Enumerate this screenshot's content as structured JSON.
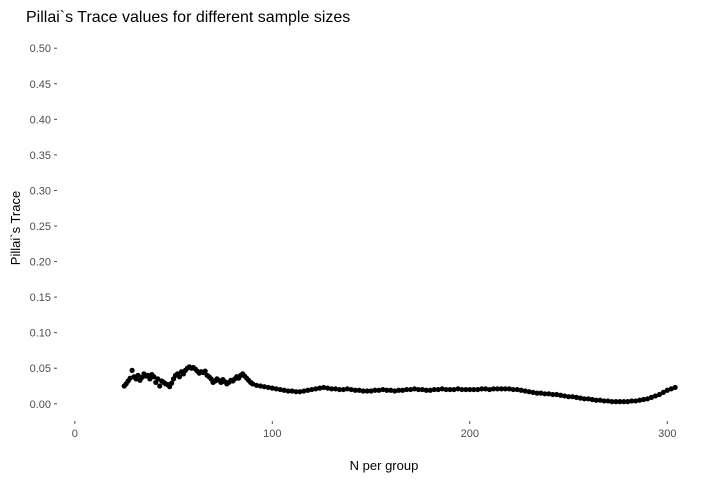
{
  "chart_data": {
    "type": "scatter",
    "title": "Pillai`s Trace values for different sample sizes",
    "xlabel": "N per group",
    "ylabel": "Pillai`s Trace",
    "xlim": [
      -7,
      311
    ],
    "ylim": [
      -0.02,
      0.52
    ],
    "x_ticks": [
      0,
      100,
      200,
      300
    ],
    "x_tick_labels": [
      "0",
      "100",
      "200",
      "300"
    ],
    "y_ticks": [
      0,
      0.05,
      0.1,
      0.15,
      0.2,
      0.25,
      0.3,
      0.35,
      0.4,
      0.45,
      0.5
    ],
    "y_tick_labels": [
      "0.00",
      "0.05",
      "0.10",
      "0.15",
      "0.20",
      "0.25",
      "0.30",
      "0.35",
      "0.40",
      "0.45",
      "0.50"
    ],
    "grid": false,
    "legend": "none",
    "point_color": "#000000",
    "series": [
      {
        "x": [
          25,
          26,
          27,
          28,
          29,
          30,
          31,
          32,
          33,
          34,
          35,
          36,
          37,
          38,
          39,
          40,
          41,
          42,
          43,
          44,
          45,
          46,
          47,
          48,
          49,
          50,
          51,
          52,
          53,
          54,
          55,
          56,
          57,
          58,
          59,
          60,
          61,
          62,
          63,
          64,
          65,
          66,
          67,
          68,
          69,
          70,
          71,
          72,
          73,
          74,
          75,
          76,
          77,
          78,
          79,
          80,
          81,
          82,
          83,
          84,
          85,
          86,
          87,
          88,
          89,
          90,
          92,
          94,
          96,
          98,
          100,
          102,
          104,
          106,
          108,
          110,
          112,
          114,
          116,
          118,
          120,
          122,
          124,
          126,
          128,
          130,
          132,
          134,
          136,
          138,
          140,
          142,
          144,
          146,
          148,
          150,
          152,
          154,
          156,
          158,
          160,
          162,
          164,
          166,
          168,
          170,
          172,
          174,
          176,
          178,
          180,
          182,
          184,
          186,
          188,
          190,
          192,
          194,
          196,
          198,
          200,
          202,
          204,
          206,
          208,
          210,
          212,
          214,
          216,
          218,
          220,
          222,
          224,
          226,
          228,
          230,
          232,
          234,
          236,
          238,
          240,
          242,
          244,
          246,
          248,
          250,
          252,
          254,
          256,
          258,
          260,
          262,
          264,
          266,
          268,
          270,
          272,
          274,
          276,
          278,
          280,
          282,
          284,
          286,
          288,
          290,
          292,
          294,
          296,
          298,
          300,
          302,
          304
        ],
        "y": [
          0.025,
          0.028,
          0.032,
          0.036,
          0.047,
          0.038,
          0.035,
          0.04,
          0.033,
          0.037,
          0.042,
          0.039,
          0.04,
          0.035,
          0.041,
          0.038,
          0.03,
          0.035,
          0.025,
          0.032,
          0.03,
          0.028,
          0.027,
          0.024,
          0.029,
          0.035,
          0.04,
          0.042,
          0.038,
          0.045,
          0.042,
          0.047,
          0.05,
          0.052,
          0.05,
          0.051,
          0.049,
          0.046,
          0.043,
          0.045,
          0.044,
          0.046,
          0.04,
          0.038,
          0.035,
          0.03,
          0.032,
          0.035,
          0.033,
          0.03,
          0.034,
          0.031,
          0.028,
          0.03,
          0.033,
          0.032,
          0.035,
          0.038,
          0.036,
          0.04,
          0.042,
          0.039,
          0.036,
          0.033,
          0.03,
          0.028,
          0.026,
          0.025,
          0.024,
          0.023,
          0.022,
          0.021,
          0.02,
          0.019,
          0.018,
          0.018,
          0.017,
          0.017,
          0.018,
          0.019,
          0.02,
          0.021,
          0.022,
          0.023,
          0.022,
          0.021,
          0.021,
          0.02,
          0.02,
          0.021,
          0.02,
          0.019,
          0.019,
          0.018,
          0.018,
          0.018,
          0.019,
          0.019,
          0.02,
          0.019,
          0.019,
          0.018,
          0.019,
          0.019,
          0.02,
          0.02,
          0.021,
          0.02,
          0.02,
          0.019,
          0.019,
          0.02,
          0.02,
          0.021,
          0.02,
          0.02,
          0.02,
          0.021,
          0.02,
          0.02,
          0.02,
          0.02,
          0.02,
          0.021,
          0.021,
          0.02,
          0.021,
          0.021,
          0.021,
          0.021,
          0.021,
          0.02,
          0.02,
          0.019,
          0.018,
          0.017,
          0.016,
          0.015,
          0.015,
          0.014,
          0.014,
          0.013,
          0.013,
          0.012,
          0.011,
          0.01,
          0.01,
          0.009,
          0.008,
          0.007,
          0.007,
          0.006,
          0.005,
          0.005,
          0.004,
          0.004,
          0.003,
          0.003,
          0.003,
          0.003,
          0.003,
          0.004,
          0.004,
          0.005,
          0.006,
          0.007,
          0.009,
          0.011,
          0.013,
          0.016,
          0.019,
          0.021,
          0.023
        ]
      }
    ]
  }
}
